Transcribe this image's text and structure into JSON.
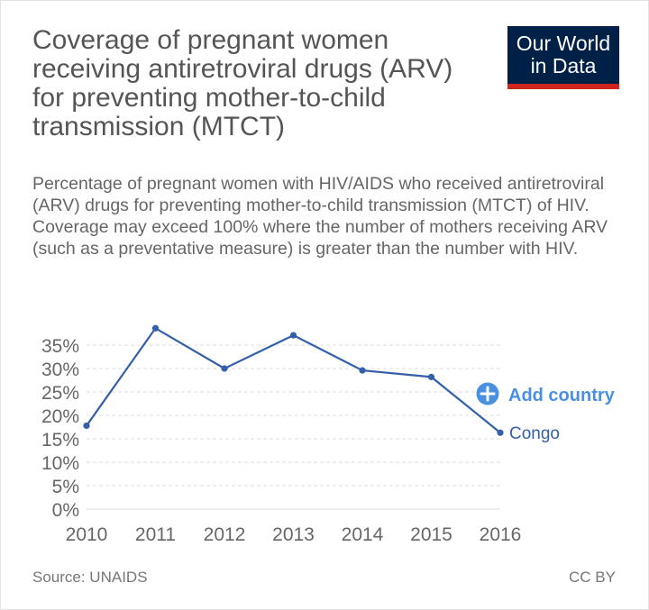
{
  "header": {
    "title": "Coverage of pregnant women receiving antiretroviral drugs (ARV) for preventing mother-to-child transmission (MTCT)",
    "subtitle": "Percentage of pregnant women with HIV/AIDS who received antiretroviral (ARV) drugs for preventing mother-to-child transmission (MTCT) of HIV. Coverage may exceed 100% where the number of mothers receiving ARV (such as a preventative measure) is greater than the number with HIV."
  },
  "logo": {
    "line1": "Our World",
    "line2": "in Data"
  },
  "controls": {
    "add_country_label": "Add country",
    "add_icon": "plus-circle-icon"
  },
  "footer": {
    "source": "Source: UNAIDS",
    "license": "CC BY"
  },
  "colors": {
    "series": "#3360a9",
    "accent": "#4a90e2",
    "grid": "#dddddd",
    "logo_bg": "#002147",
    "logo_bar": "#ce261e"
  },
  "chart_data": {
    "type": "line",
    "x": [
      2010,
      2011,
      2012,
      2013,
      2014,
      2015,
      2016
    ],
    "series": [
      {
        "name": "Congo",
        "values": [
          17.8,
          38.6,
          30.0,
          37.1,
          29.6,
          28.2,
          16.3
        ]
      }
    ],
    "ylim": [
      0,
      35
    ],
    "y_ticks": [
      "0%",
      "5%",
      "10%",
      "15%",
      "20%",
      "25%",
      "30%",
      "35%"
    ],
    "x_ticks": [
      "2010",
      "2011",
      "2012",
      "2013",
      "2014",
      "2015",
      "2016"
    ],
    "grid": true,
    "legend": "line-end label"
  }
}
